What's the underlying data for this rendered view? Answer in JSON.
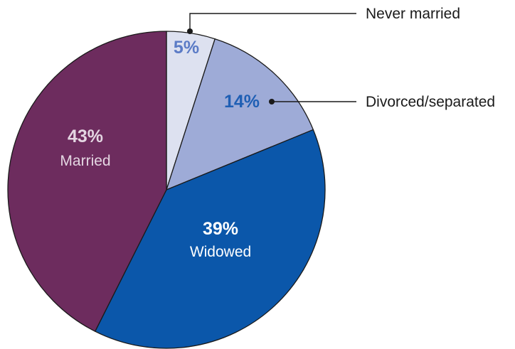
{
  "chart_data": {
    "type": "pie",
    "start_angle_deg": 0,
    "direction": "clockwise",
    "slices": [
      {
        "key": "never_married",
        "label": "Never married",
        "value": 5,
        "value_label": "5%",
        "color": "#dde1f0",
        "label_color": "#5b7bc6",
        "label_mode": "callout"
      },
      {
        "key": "divorced",
        "label": "Divorced/separated",
        "value": 14,
        "value_label": "14%",
        "color": "#9eabd7",
        "label_color": "#1f5fb4",
        "label_mode": "callout"
      },
      {
        "key": "widowed",
        "label": "Widowed",
        "value": 39,
        "value_label": "39%",
        "color": "#0b57aa",
        "label_color": "#ffffff",
        "label_mode": "inside"
      },
      {
        "key": "married",
        "label": "Married",
        "value": 43,
        "value_label": "43%",
        "color": "#6d2c5e",
        "label_color": "#e4d6e2",
        "label_mode": "inside"
      }
    ]
  }
}
